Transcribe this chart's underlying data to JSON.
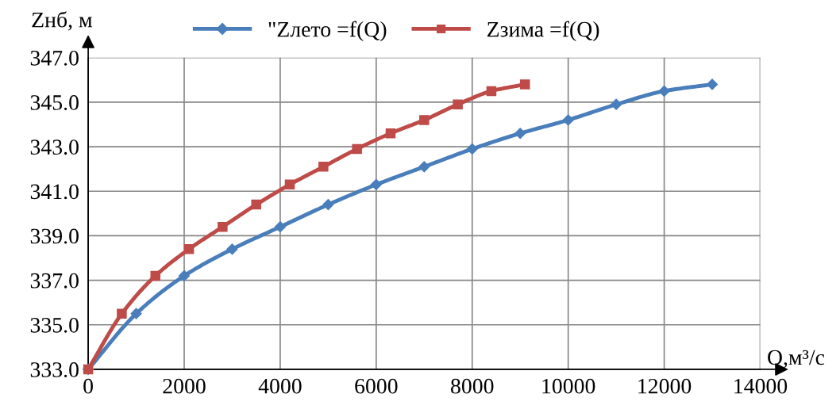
{
  "chart_data": {
    "type": "line",
    "ylabel": "Zнб, м",
    "xlabel": "Q,м³/с",
    "xlim": [
      0,
      14000
    ],
    "xticks": [
      0,
      2000,
      4000,
      6000,
      8000,
      10000,
      12000,
      14000
    ],
    "ylim": [
      333,
      347
    ],
    "yticks": [
      {
        "value": 333,
        "label": "333.0"
      },
      {
        "value": 335,
        "label": "335.0"
      },
      {
        "value": 337,
        "label": "337.0"
      },
      {
        "value": 339,
        "label": "339.0"
      },
      {
        "value": 341,
        "label": "341.0"
      },
      {
        "value": 343,
        "label": "343.0"
      },
      {
        "value": 345,
        "label": "345.0"
      },
      {
        "value": 347,
        "label": "347.0"
      }
    ],
    "grid": true,
    "legend": "top",
    "line_style": "solid",
    "series": [
      {
        "name": "\"Zлето =f(Q)",
        "color": "#4a7ebb",
        "marker": "diamond",
        "x": [
          0,
          1000,
          2000,
          3000,
          4000,
          5000,
          6000,
          7000,
          8000,
          9000,
          10000,
          11000,
          12000,
          13000
        ],
        "values": [
          333.0,
          335.5,
          337.2,
          338.4,
          339.4,
          340.4,
          341.3,
          342.1,
          342.9,
          343.6,
          344.2,
          344.9,
          345.5,
          345.8
        ]
      },
      {
        "name": "Zзима =f(Q)",
        "color": "#be4b48",
        "marker": "square",
        "x": [
          0,
          700,
          1400,
          2100,
          2800,
          3500,
          4200,
          4900,
          5600,
          6300,
          7000,
          7700,
          8400,
          9100
        ],
        "values": [
          333.0,
          335.5,
          337.2,
          338.4,
          339.4,
          340.4,
          341.3,
          342.1,
          342.9,
          343.6,
          344.2,
          344.9,
          345.5,
          345.8
        ]
      }
    ]
  }
}
